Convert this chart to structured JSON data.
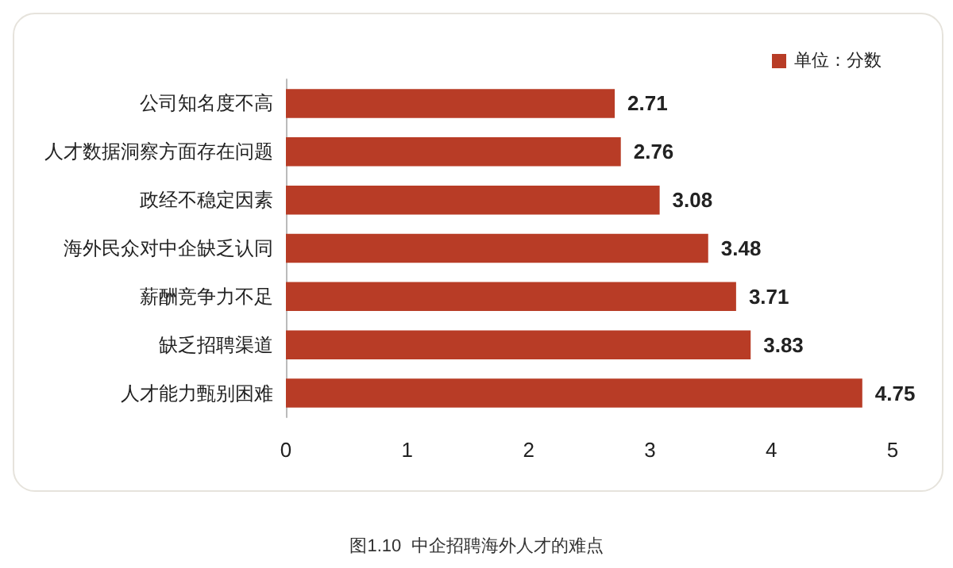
{
  "chart_data": {
    "type": "bar",
    "orientation": "horizontal",
    "categories": [
      "公司知名度不高",
      "人才数据洞察方面存在问题",
      "政经不稳定因素",
      "海外民众对中企缺乏认同",
      "薪酬竞争力不足",
      "缺乏招聘渠道",
      "人才能力甄别困难"
    ],
    "series": [
      {
        "name": "单位：分数",
        "color": "#b83c26",
        "values": [
          2.71,
          2.76,
          3.08,
          3.48,
          3.71,
          3.83,
          4.75
        ]
      }
    ],
    "xlim": [
      0,
      5
    ],
    "xticks": [
      0,
      1,
      2,
      3,
      4,
      5
    ],
    "grid": false,
    "legend": "top right",
    "data_labels": true,
    "annotations": [
      "图1.10  中企招聘海外人才的难点"
    ]
  }
}
